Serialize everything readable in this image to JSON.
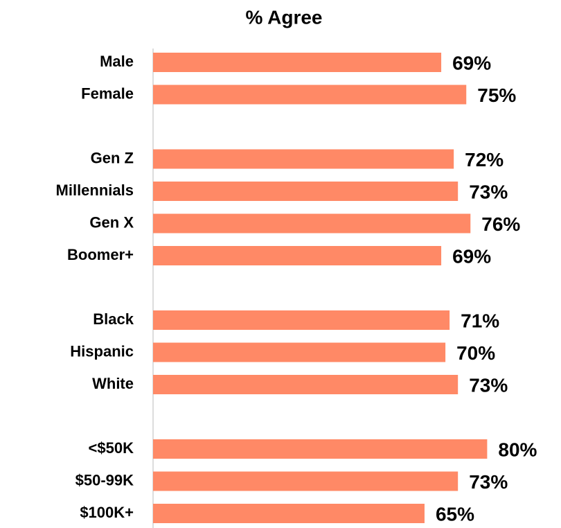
{
  "chart_data": {
    "type": "bar",
    "orientation": "horizontal",
    "title": "% Agree",
    "categories": [
      "Male",
      "Female",
      null,
      "Gen Z",
      "Millennials",
      "Gen X",
      "Boomer+",
      null,
      "Black",
      "Hispanic",
      "White",
      null,
      "<$50K",
      "$50-99K",
      "$100K+"
    ],
    "values": [
      69,
      75,
      null,
      72,
      73,
      76,
      69,
      null,
      71,
      70,
      73,
      null,
      80,
      73,
      65
    ],
    "value_labels": [
      "69%",
      "75%",
      null,
      "72%",
      "73%",
      "76%",
      "69%",
      null,
      "71%",
      "70%",
      "73%",
      null,
      "80%",
      "73%",
      "65%"
    ],
    "color": "#ff8966",
    "xlim": [
      0,
      100
    ]
  }
}
